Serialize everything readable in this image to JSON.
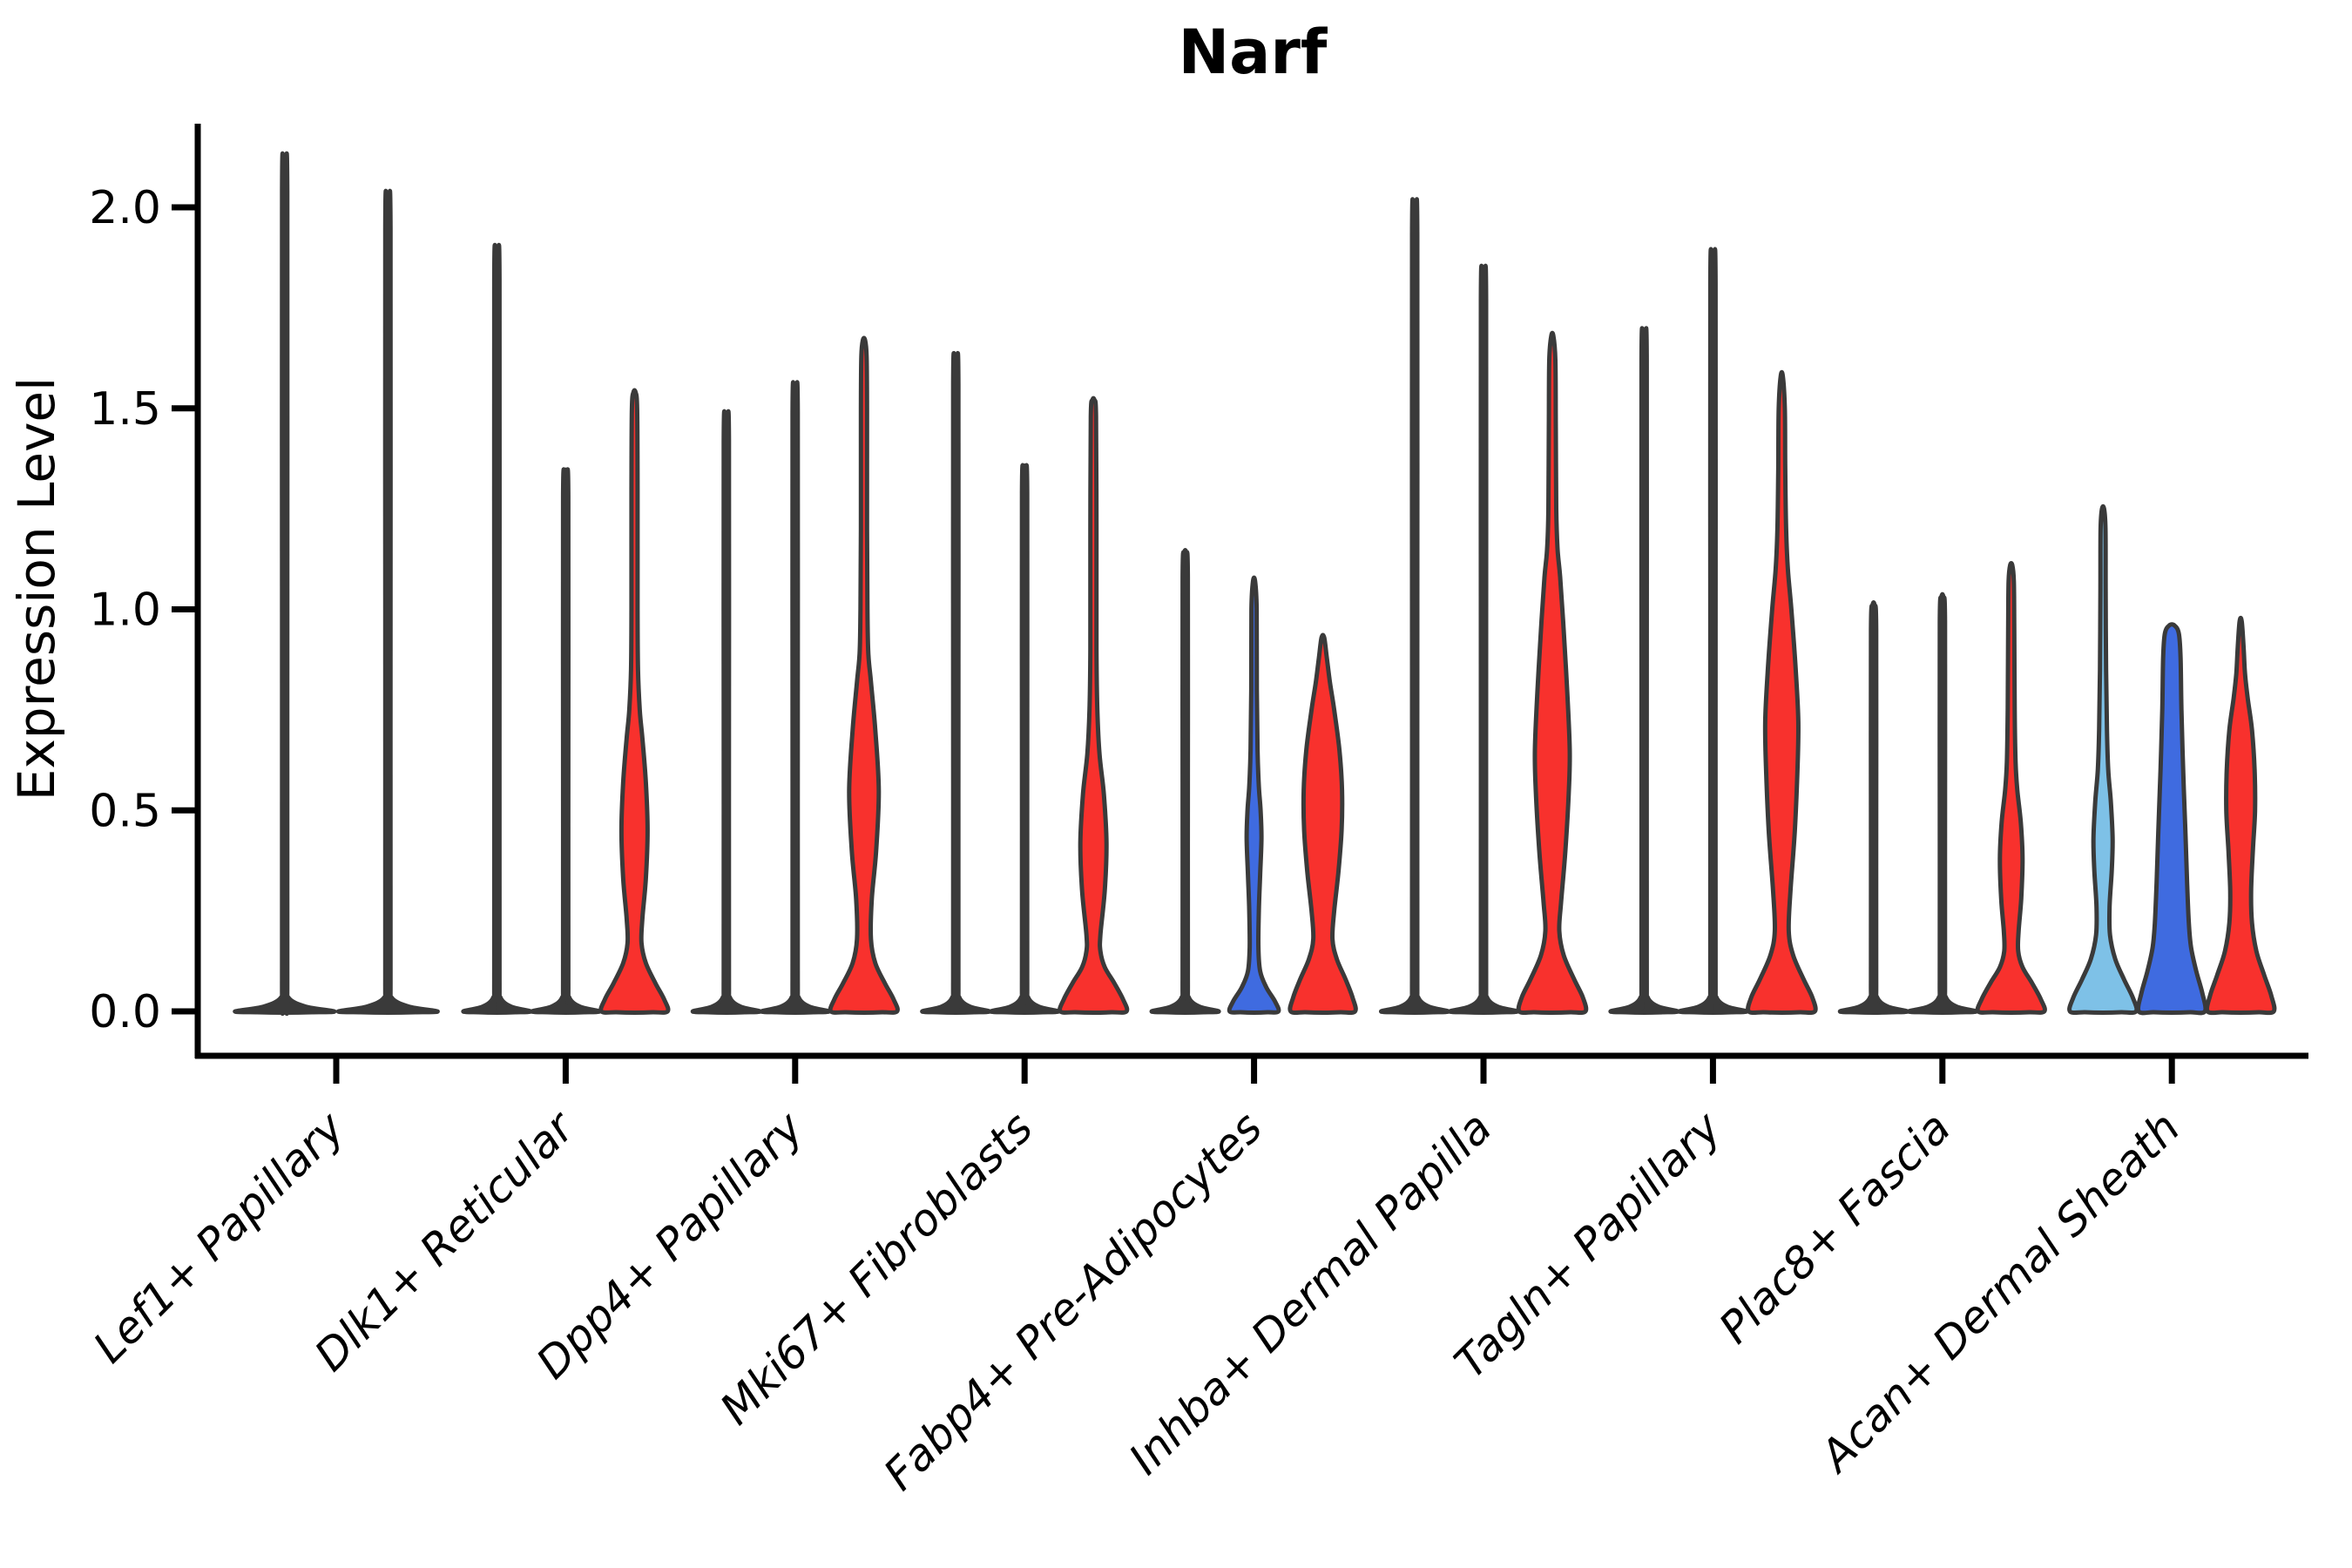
{
  "chart_data": {
    "type": "violin",
    "title": "Narf",
    "ylabel": "Expression Level",
    "xlabel": "",
    "grid": false,
    "legend": null,
    "ylim": [
      -0.1,
      2.21
    ],
    "yticks": [
      {
        "v": 0.0,
        "label": "0.0"
      },
      {
        "v": 0.5,
        "label": "0.5"
      },
      {
        "v": 1.0,
        "label": "1.0"
      },
      {
        "v": 1.5,
        "label": "1.5"
      },
      {
        "v": 2.0,
        "label": "2.0"
      }
    ],
    "palette": {
      "red": "#F8312D",
      "blue": "#3F6BE0",
      "skyblue": "#7EC1E7",
      "dark": "#3A3A3A",
      "violin_outline": "#3A3A3A",
      "axis": "#000000",
      "text": "#000000"
    },
    "categories": [
      {
        "label": "Lef1+ Papillary",
        "violins": [
          {
            "color": "dark",
            "max": 2.1,
            "profile": null
          },
          {
            "color": "dark",
            "max": 2.01,
            "profile": null
          }
        ]
      },
      {
        "label": "Dlk1+ Reticular",
        "violins": [
          {
            "color": "dark",
            "max": 1.88,
            "profile": null
          },
          {
            "color": "dark",
            "max": 1.34,
            "profile": null
          },
          {
            "color": "red",
            "max": 1.54,
            "profile": [
              [
                0,
                38
              ],
              [
                0.03,
                34
              ],
              [
                0.07,
                24
              ],
              [
                0.12,
                13
              ],
              [
                0.17,
                8
              ],
              [
                0.23,
                9
              ],
              [
                0.33,
                13
              ],
              [
                0.45,
                15
              ],
              [
                0.57,
                13
              ],
              [
                0.68,
                9
              ],
              [
                0.75,
                6
              ],
              [
                0.85,
                4
              ],
              [
                1.0,
                3.5
              ],
              [
                1.3,
                3.5
              ],
              [
                1.5,
                3
              ],
              [
                1.54,
                1.2
              ]
            ]
          }
        ]
      },
      {
        "label": "Dpp4+ Papillary",
        "violins": [
          {
            "color": "dark",
            "max": 1.48,
            "profile": null
          },
          {
            "color": "dark",
            "max": 1.55,
            "profile": null
          },
          {
            "color": "red",
            "max": 1.67,
            "profile": [
              [
                0,
                38
              ],
              [
                0.03,
                34
              ],
              [
                0.07,
                24
              ],
              [
                0.12,
                13
              ],
              [
                0.18,
                8
              ],
              [
                0.28,
                9
              ],
              [
                0.4,
                14
              ],
              [
                0.55,
                17
              ],
              [
                0.7,
                13
              ],
              [
                0.82,
                8
              ],
              [
                0.89,
                5
              ],
              [
                1.0,
                4
              ],
              [
                1.2,
                3.5
              ],
              [
                1.5,
                3.5
              ],
              [
                1.63,
                3
              ],
              [
                1.67,
                1.2
              ]
            ]
          }
        ]
      },
      {
        "label": "Mki67+ Fibroblasts",
        "violins": [
          {
            "color": "dark",
            "max": 1.62,
            "profile": null
          },
          {
            "color": "dark",
            "max": 1.35,
            "profile": null
          },
          {
            "color": "red",
            "max": 1.52,
            "profile": [
              [
                0,
                38
              ],
              [
                0.03,
                34
              ],
              [
                0.07,
                24
              ],
              [
                0.11,
                13
              ],
              [
                0.15,
                8
              ],
              [
                0.19,
                8
              ],
              [
                0.3,
                13
              ],
              [
                0.42,
                15
              ],
              [
                0.54,
                12
              ],
              [
                0.64,
                7
              ],
              [
                0.75,
                4.5
              ],
              [
                0.9,
                3.5
              ],
              [
                1.2,
                3.5
              ],
              [
                1.48,
                3
              ],
              [
                1.52,
                1.2
              ]
            ]
          }
        ]
      },
      {
        "label": "Fabp4+ Pre-Adipocytes",
        "violins": [
          {
            "color": "dark",
            "max": 1.14,
            "profile": null
          },
          {
            "color": "blue",
            "max": 1.07,
            "profile": [
              [
                0,
                28
              ],
              [
                0.025,
                24
              ],
              [
                0.06,
                14
              ],
              [
                0.1,
                7
              ],
              [
                0.16,
                5
              ],
              [
                0.25,
                5.5
              ],
              [
                0.34,
                7
              ],
              [
                0.43,
                8.5
              ],
              [
                0.5,
                7.5
              ],
              [
                0.56,
                5.5
              ],
              [
                0.65,
                4
              ],
              [
                0.8,
                3.2
              ],
              [
                1.0,
                3
              ],
              [
                1.07,
                1.2
              ]
            ]
          },
          {
            "color": "red",
            "max": 0.93,
            "profile": [
              [
                0,
                37
              ],
              [
                0.035,
                34
              ],
              [
                0.08,
                26
              ],
              [
                0.13,
                16
              ],
              [
                0.18,
                11
              ],
              [
                0.25,
                13
              ],
              [
                0.35,
                18
              ],
              [
                0.45,
                21.5
              ],
              [
                0.55,
                22
              ],
              [
                0.65,
                19
              ],
              [
                0.75,
                13
              ],
              [
                0.82,
                8
              ],
              [
                0.88,
                4.5
              ],
              [
                0.93,
                1.5
              ]
            ]
          }
        ]
      },
      {
        "label": "Inhba+ Dermal Papilla",
        "violins": [
          {
            "color": "dark",
            "max": 1.99,
            "profile": null
          },
          {
            "color": "dark",
            "max": 1.83,
            "profile": null
          },
          {
            "color": "red",
            "max": 1.68,
            "profile": [
              [
                0,
                38
              ],
              [
                0.035,
                35
              ],
              [
                0.08,
                25
              ],
              [
                0.14,
                13
              ],
              [
                0.2,
                8
              ],
              [
                0.27,
                10
              ],
              [
                0.4,
                15
              ],
              [
                0.55,
                19
              ],
              [
                0.65,
                20
              ],
              [
                0.8,
                17
              ],
              [
                0.95,
                13
              ],
              [
                1.08,
                9
              ],
              [
                1.15,
                6
              ],
              [
                1.25,
                4.5
              ],
              [
                1.45,
                4
              ],
              [
                1.62,
                3.5
              ],
              [
                1.68,
                1.2
              ]
            ]
          }
        ]
      },
      {
        "label": "Tagln+ Papillary",
        "violins": [
          {
            "color": "dark",
            "max": 1.68,
            "profile": null
          },
          {
            "color": "dark",
            "max": 1.87,
            "profile": null
          },
          {
            "color": "red",
            "max": 1.58,
            "profile": [
              [
                0,
                38
              ],
              [
                0.035,
                35
              ],
              [
                0.08,
                25
              ],
              [
                0.14,
                13
              ],
              [
                0.2,
                8
              ],
              [
                0.3,
                10
              ],
              [
                0.45,
                15
              ],
              [
                0.6,
                18
              ],
              [
                0.72,
                19
              ],
              [
                0.85,
                16
              ],
              [
                1.0,
                11
              ],
              [
                1.1,
                7
              ],
              [
                1.2,
                5
              ],
              [
                1.35,
                4
              ],
              [
                1.5,
                3.5
              ],
              [
                1.58,
                1.2
              ]
            ]
          }
        ]
      },
      {
        "label": "Plac8+ Fascia",
        "violins": [
          {
            "color": "dark",
            "max": 1.01,
            "profile": null
          },
          {
            "color": "dark",
            "max": 1.03,
            "profile": null
          },
          {
            "color": "red",
            "max": 1.11,
            "profile": [
              [
                0,
                38
              ],
              [
                0.03,
                34
              ],
              [
                0.07,
                24
              ],
              [
                0.11,
                13
              ],
              [
                0.15,
                8
              ],
              [
                0.2,
                8.5
              ],
              [
                0.28,
                11.5
              ],
              [
                0.38,
                13
              ],
              [
                0.47,
                11
              ],
              [
                0.55,
                7
              ],
              [
                0.62,
                5
              ],
              [
                0.75,
                4
              ],
              [
                0.95,
                3.5
              ],
              [
                1.07,
                3
              ],
              [
                1.11,
                1.2
              ]
            ]
          }
        ]
      },
      {
        "label": "Acan+ Dermal Sheath",
        "violins": [
          {
            "color": "skyblue",
            "max": 1.25,
            "profile": [
              [
                0,
                38
              ],
              [
                0.035,
                34
              ],
              [
                0.08,
                24
              ],
              [
                0.13,
                14
              ],
              [
                0.19,
                8
              ],
              [
                0.26,
                7.5
              ],
              [
                0.35,
                10
              ],
              [
                0.43,
                11
              ],
              [
                0.52,
                9
              ],
              [
                0.6,
                6
              ],
              [
                0.7,
                4.5
              ],
              [
                0.85,
                3.5
              ],
              [
                1.05,
                3
              ],
              [
                1.2,
                2.8
              ],
              [
                1.25,
                1.2
              ]
            ]
          },
          {
            "color": "blue",
            "max": 0.96,
            "profile": [
              [
                0,
                38
              ],
              [
                0.045,
                35
              ],
              [
                0.1,
                28
              ],
              [
                0.16,
                22
              ],
              [
                0.22,
                19.5
              ],
              [
                0.32,
                17.5
              ],
              [
                0.45,
                15.5
              ],
              [
                0.6,
                13
              ],
              [
                0.75,
                11
              ],
              [
                0.88,
                10
              ],
              [
                0.94,
                8
              ],
              [
                0.96,
                3
              ]
            ]
          },
          {
            "color": "red",
            "max": 0.97,
            "profile": [
              [
                0,
                38
              ],
              [
                0.04,
                35
              ],
              [
                0.09,
                27
              ],
              [
                0.15,
                18
              ],
              [
                0.22,
                13
              ],
              [
                0.3,
                12
              ],
              [
                0.4,
                14
              ],
              [
                0.5,
                16.5
              ],
              [
                0.6,
                16
              ],
              [
                0.7,
                13
              ],
              [
                0.78,
                8
              ],
              [
                0.84,
                5
              ],
              [
                0.9,
                3.5
              ],
              [
                0.97,
                1.2
              ]
            ]
          }
        ]
      }
    ]
  }
}
